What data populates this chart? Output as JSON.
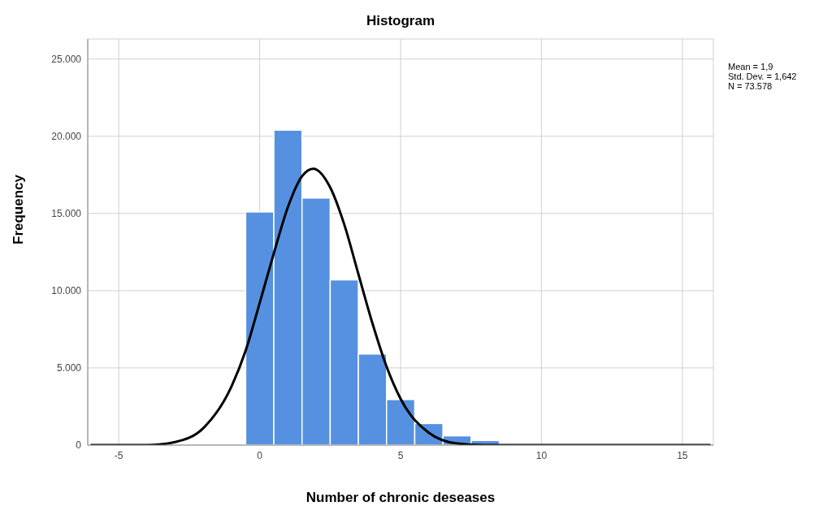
{
  "chart_data": {
    "type": "histogram",
    "title": "Histogram",
    "xlabel": "Number of chronic deseases",
    "ylabel": "Frequency",
    "bins": [
      -0.5,
      0.5,
      1.5,
      2.5,
      3.5,
      4.5,
      5.5,
      6.5,
      7.5,
      8.5
    ],
    "values": [
      15100,
      20400,
      16000,
      10700,
      5900,
      2950,
      1400,
      600,
      300
    ],
    "color": "#5591e0",
    "series": [
      {
        "type": "line",
        "color": "#000000",
        "x": [
          -6,
          -5,
          -4,
          -3,
          -2,
          -1,
          -0.5,
          0,
          0.5,
          1,
          1.5,
          1.9,
          2.5,
          3,
          3.5,
          4,
          4.5,
          5,
          6,
          7,
          8,
          10,
          12,
          14,
          16
        ],
        "values": [
          0,
          0,
          0,
          200,
          1100,
          3800,
          6100,
          9200,
          12400,
          15400,
          17400,
          17900,
          16700,
          14300,
          11100,
          7900,
          5100,
          3000,
          800,
          100,
          0,
          0,
          0,
          0,
          0
        ]
      }
    ],
    "xlim": [
      -6.1,
      16.1
    ],
    "xticks": [
      -5,
      0,
      5,
      10,
      15
    ],
    "ylim": [
      0,
      26300
    ],
    "yticks": [
      {
        "value": 0,
        "label": "0"
      },
      {
        "value": 5000,
        "label": "5.000"
      },
      {
        "value": 10000,
        "label": "10.000"
      },
      {
        "value": 15000,
        "label": "15.000"
      },
      {
        "value": 20000,
        "label": "20.000"
      },
      {
        "value": 25000,
        "label": "25.000"
      }
    ],
    "grid": true,
    "annotations": [
      "Mean = 1,9",
      "Std. Dev. = 1,642",
      "N = 73.578"
    ]
  }
}
